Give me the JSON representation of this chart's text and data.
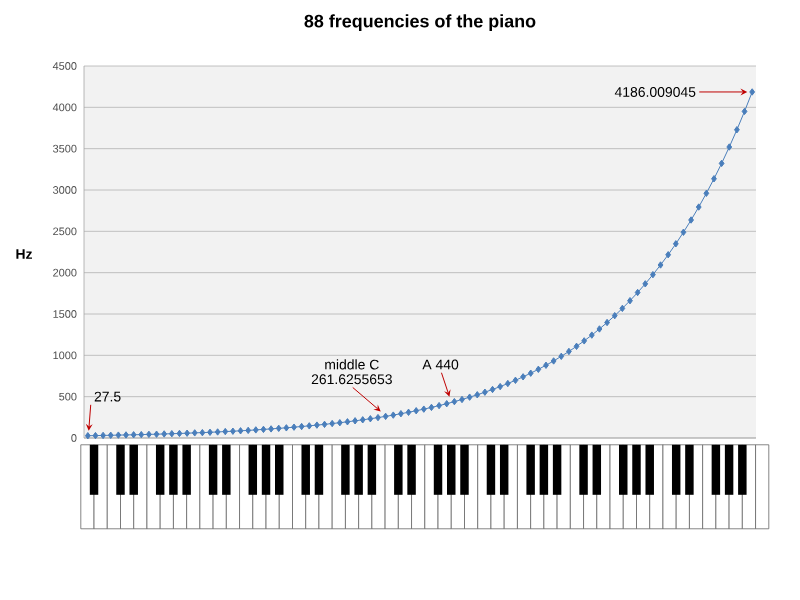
{
  "chart_data": {
    "type": "line",
    "title": "88 frequencies of the piano",
    "ylabel": "Hz",
    "categories": [
      null,
      null,
      null,
      null,
      null,
      null,
      null,
      null,
      null,
      null,
      null,
      null,
      null,
      null,
      null,
      null,
      null,
      null,
      null,
      null,
      null,
      null,
      null,
      null,
      null,
      null,
      null,
      null,
      null,
      null,
      null,
      null,
      null,
      null,
      null,
      null,
      null,
      null,
      null,
      null,
      null,
      null,
      null,
      null,
      null,
      null,
      null,
      null,
      null,
      null,
      null,
      null,
      null,
      null,
      null,
      null,
      null,
      null,
      null,
      null,
      null,
      null,
      null,
      null,
      null,
      null,
      null,
      null,
      null,
      null,
      null,
      null,
      null,
      null,
      null,
      null,
      null,
      null,
      null,
      null,
      null,
      null,
      null,
      null,
      null,
      null,
      null,
      null
    ],
    "values": [
      27.5,
      29,
      31,
      33,
      35,
      37,
      39,
      41,
      44,
      46,
      49,
      52,
      55,
      58,
      62,
      65,
      69,
      73,
      78,
      82,
      87,
      92,
      98,
      104,
      110,
      117,
      123,
      131,
      139,
      147,
      156,
      165,
      175,
      185,
      196,
      208,
      220,
      233,
      247,
      261.6255653,
      277,
      294,
      311,
      330,
      349,
      370,
      392,
      415,
      440,
      466,
      494,
      523,
      554,
      587,
      622,
      659,
      698,
      740,
      784,
      831,
      880,
      932,
      988,
      1047,
      1109,
      1175,
      1245,
      1319,
      1397,
      1480,
      1568,
      1661,
      1760,
      1865,
      1976,
      2093,
      2217,
      2349,
      2489,
      2637,
      2794,
      2960,
      3136,
      3322,
      3520,
      3729,
      3951,
      4186.009045
    ],
    "color": "#4a7ebb",
    "marker": "diamond",
    "ylim": [
      0,
      4500
    ],
    "yticks": [
      0,
      500,
      1000,
      1500,
      2000,
      2500,
      3000,
      3500,
      4000,
      4500
    ],
    "grid": "y",
    "tick_labels": "y",
    "annotations": [
      {
        "text": "27.5",
        "y": 27.5
      },
      "middle C",
      {
        "text": "261.6255653",
        "y": 261.6255653
      },
      {
        "text": "A 440",
        "y": 440
      },
      "4186.009045"
    ]
  }
}
